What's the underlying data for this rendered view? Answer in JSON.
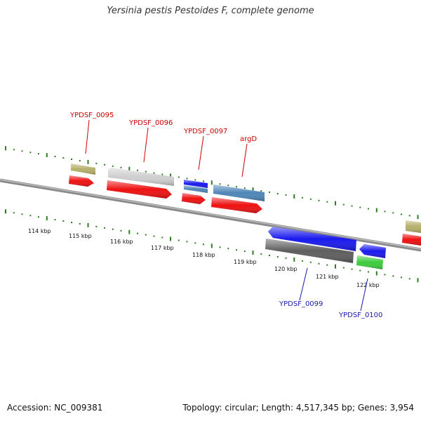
{
  "title": "Yersinia pestis Pestoides F, complete genome",
  "footer": {
    "accession": "Accession: NC_009381",
    "summary": "Topology: circular; Length: 4,517,345 bp; Genes: 3,954"
  },
  "scale": {
    "labels": [
      "114 kbp",
      "115 kbp",
      "116 kbp",
      "117 kbp",
      "118 kbp",
      "119 kbp",
      "120 kbp",
      "121 kbp",
      "122 kbp"
    ]
  },
  "gene_labels": {
    "top": [
      "YPDSF_0095",
      "YPDSF_0096",
      "YPDSF_0097",
      "argD"
    ],
    "bottom": [
      "YPDSF_0099",
      "YPDSF_0100"
    ]
  },
  "colors": {
    "backbone": "#8a8a8a",
    "tick": "#2e7d20",
    "cds": "#ee1111",
    "gene_label_top": "#cc0000",
    "gene_label_bottom": "#1a1aaa",
    "olive": "#b5b06a",
    "light_gray": "#cfcfcf",
    "blue": "#1a1aee",
    "steel_blue": "#4f86b8",
    "dark_gray": "#5e5e5e",
    "green": "#3ccc3c"
  }
}
